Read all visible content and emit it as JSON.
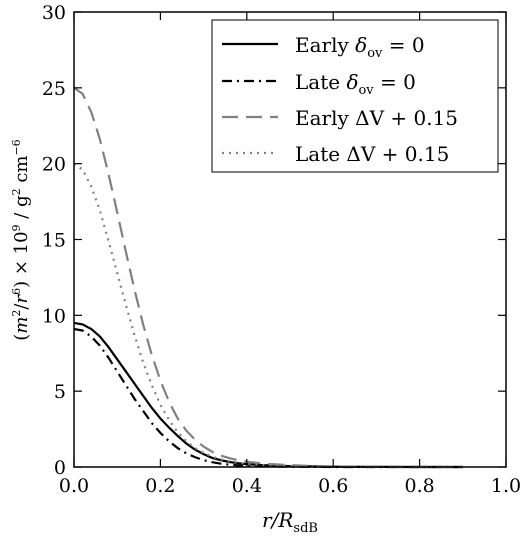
{
  "chart_data": {
    "type": "line",
    "title": "",
    "xlabel": "r/R_sdB",
    "ylabel": "(m²/r⁶) × 10⁹ / g² cm⁻⁶",
    "xlim": [
      0.0,
      1.0
    ],
    "ylim": [
      0,
      30
    ],
    "x_ticks": [
      "0.0",
      "0.2",
      "0.4",
      "0.6",
      "0.8",
      "1.0"
    ],
    "y_ticks": [
      "0",
      "5",
      "10",
      "15",
      "20",
      "25",
      "30"
    ],
    "grid": false,
    "legend_position": "top-right",
    "series": [
      {
        "name": "Early δov = 0",
        "style": "solid",
        "color": "#000000",
        "x": [
          0.0,
          0.02,
          0.04,
          0.06,
          0.08,
          0.1,
          0.12,
          0.14,
          0.16,
          0.18,
          0.2,
          0.22,
          0.24,
          0.26,
          0.28,
          0.3,
          0.32,
          0.34,
          0.36,
          0.38,
          0.4,
          0.42,
          0.44,
          0.46,
          0.5,
          0.55,
          0.6,
          0.7,
          0.8,
          0.9
        ],
        "y": [
          9.5,
          9.4,
          9.1,
          8.6,
          7.9,
          7.1,
          6.3,
          5.5,
          4.7,
          3.9,
          3.2,
          2.6,
          2.05,
          1.55,
          1.15,
          0.85,
          0.6,
          0.45,
          0.33,
          0.25,
          0.19,
          0.15,
          0.12,
          0.1,
          0.06,
          0.04,
          0.02,
          0.01,
          0.0,
          0.0
        ]
      },
      {
        "name": "Late δov = 0",
        "style": "dashdot",
        "color": "#000000",
        "x": [
          0.0,
          0.02,
          0.04,
          0.06,
          0.08,
          0.1,
          0.12,
          0.14,
          0.16,
          0.18,
          0.2,
          0.22,
          0.24,
          0.26,
          0.28,
          0.3,
          0.32,
          0.34,
          0.36,
          0.38,
          0.4,
          0.42,
          0.44,
          0.46,
          0.5,
          0.55,
          0.6,
          0.7,
          0.8,
          0.9
        ],
        "y": [
          9.1,
          9.0,
          8.6,
          8.0,
          7.2,
          6.3,
          5.4,
          4.5,
          3.7,
          2.9,
          2.25,
          1.7,
          1.25,
          0.9,
          0.65,
          0.45,
          0.32,
          0.22,
          0.15,
          0.11,
          0.08,
          0.06,
          0.05,
          0.04,
          0.02,
          0.01,
          0.0,
          0.0,
          0.0,
          0.0
        ]
      },
      {
        "name": "Early ΔV + 0.15",
        "style": "dashed",
        "color": "#808080",
        "x": [
          0.0,
          0.02,
          0.04,
          0.06,
          0.08,
          0.1,
          0.12,
          0.14,
          0.16,
          0.18,
          0.2,
          0.22,
          0.24,
          0.26,
          0.28,
          0.3,
          0.32,
          0.34,
          0.36,
          0.38,
          0.4,
          0.42,
          0.44,
          0.46,
          0.5,
          0.55,
          0.6,
          0.7,
          0.8,
          0.9
        ],
        "y": [
          25.0,
          24.6,
          23.4,
          21.6,
          19.3,
          16.8,
          14.2,
          11.7,
          9.4,
          7.4,
          5.7,
          4.3,
          3.2,
          2.4,
          1.8,
          1.35,
          1.0,
          0.75,
          0.58,
          0.45,
          0.35,
          0.28,
          0.22,
          0.18,
          0.12,
          0.07,
          0.04,
          0.02,
          0.01,
          0.0
        ]
      },
      {
        "name": "Late ΔV + 0.15",
        "style": "dotted",
        "color": "#808080",
        "x": [
          0.0,
          0.02,
          0.04,
          0.06,
          0.08,
          0.1,
          0.12,
          0.14,
          0.16,
          0.18,
          0.2,
          0.22,
          0.24,
          0.26,
          0.28,
          0.3,
          0.32,
          0.34,
          0.36,
          0.38,
          0.4,
          0.42,
          0.44,
          0.46,
          0.5,
          0.55,
          0.6,
          0.7,
          0.8,
          0.9
        ],
        "y": [
          20.0,
          19.6,
          18.5,
          16.9,
          14.9,
          12.8,
          10.7,
          8.7,
          6.9,
          5.4,
          4.1,
          3.1,
          2.3,
          1.7,
          1.25,
          0.92,
          0.68,
          0.5,
          0.37,
          0.28,
          0.21,
          0.16,
          0.13,
          0.1,
          0.06,
          0.03,
          0.02,
          0.01,
          0.0,
          0.0
        ]
      }
    ]
  }
}
